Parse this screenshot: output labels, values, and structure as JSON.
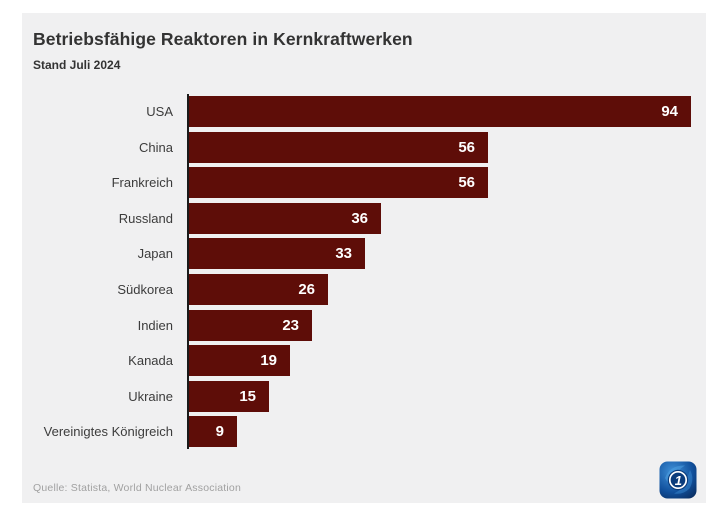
{
  "header": {
    "title": "Betriebsfähige Reaktoren in Kernkraftwerken",
    "subtitle": "Stand Juli 2024"
  },
  "chart_data": {
    "type": "bar",
    "orientation": "horizontal",
    "title": "Betriebsfähige Reaktoren in Kernkraftwerken",
    "subtitle": "Stand Juli 2024",
    "categories": [
      "USA",
      "China",
      "Frankreich",
      "Russland",
      "Japan",
      "Südkorea",
      "Indien",
      "Kanada",
      "Ukraine",
      "Vereinigtes Königreich"
    ],
    "values": [
      94,
      56,
      56,
      36,
      33,
      26,
      23,
      19,
      15,
      9
    ],
    "xlim": [
      0,
      94
    ],
    "grid": false,
    "value_labels_inside_bars": true,
    "bar_color": "#5e0d08",
    "value_label_color": "#ffffff",
    "axis_line_color": "#1a1a1a"
  },
  "footer": {
    "source": "Quelle: Statista, World Nuclear Association",
    "logo": "tagesschau-ard-globe-logo"
  },
  "colors": {
    "page_background": "#ffffff",
    "panel_background": "#f0f0f1",
    "title_text": "#333333",
    "category_label_text": "#3c3c3c",
    "source_text": "#a1a1a1",
    "logo_blue_dark": "#07224d",
    "logo_blue_mid": "#11509c",
    "logo_blue_light": "#3f90d8"
  }
}
